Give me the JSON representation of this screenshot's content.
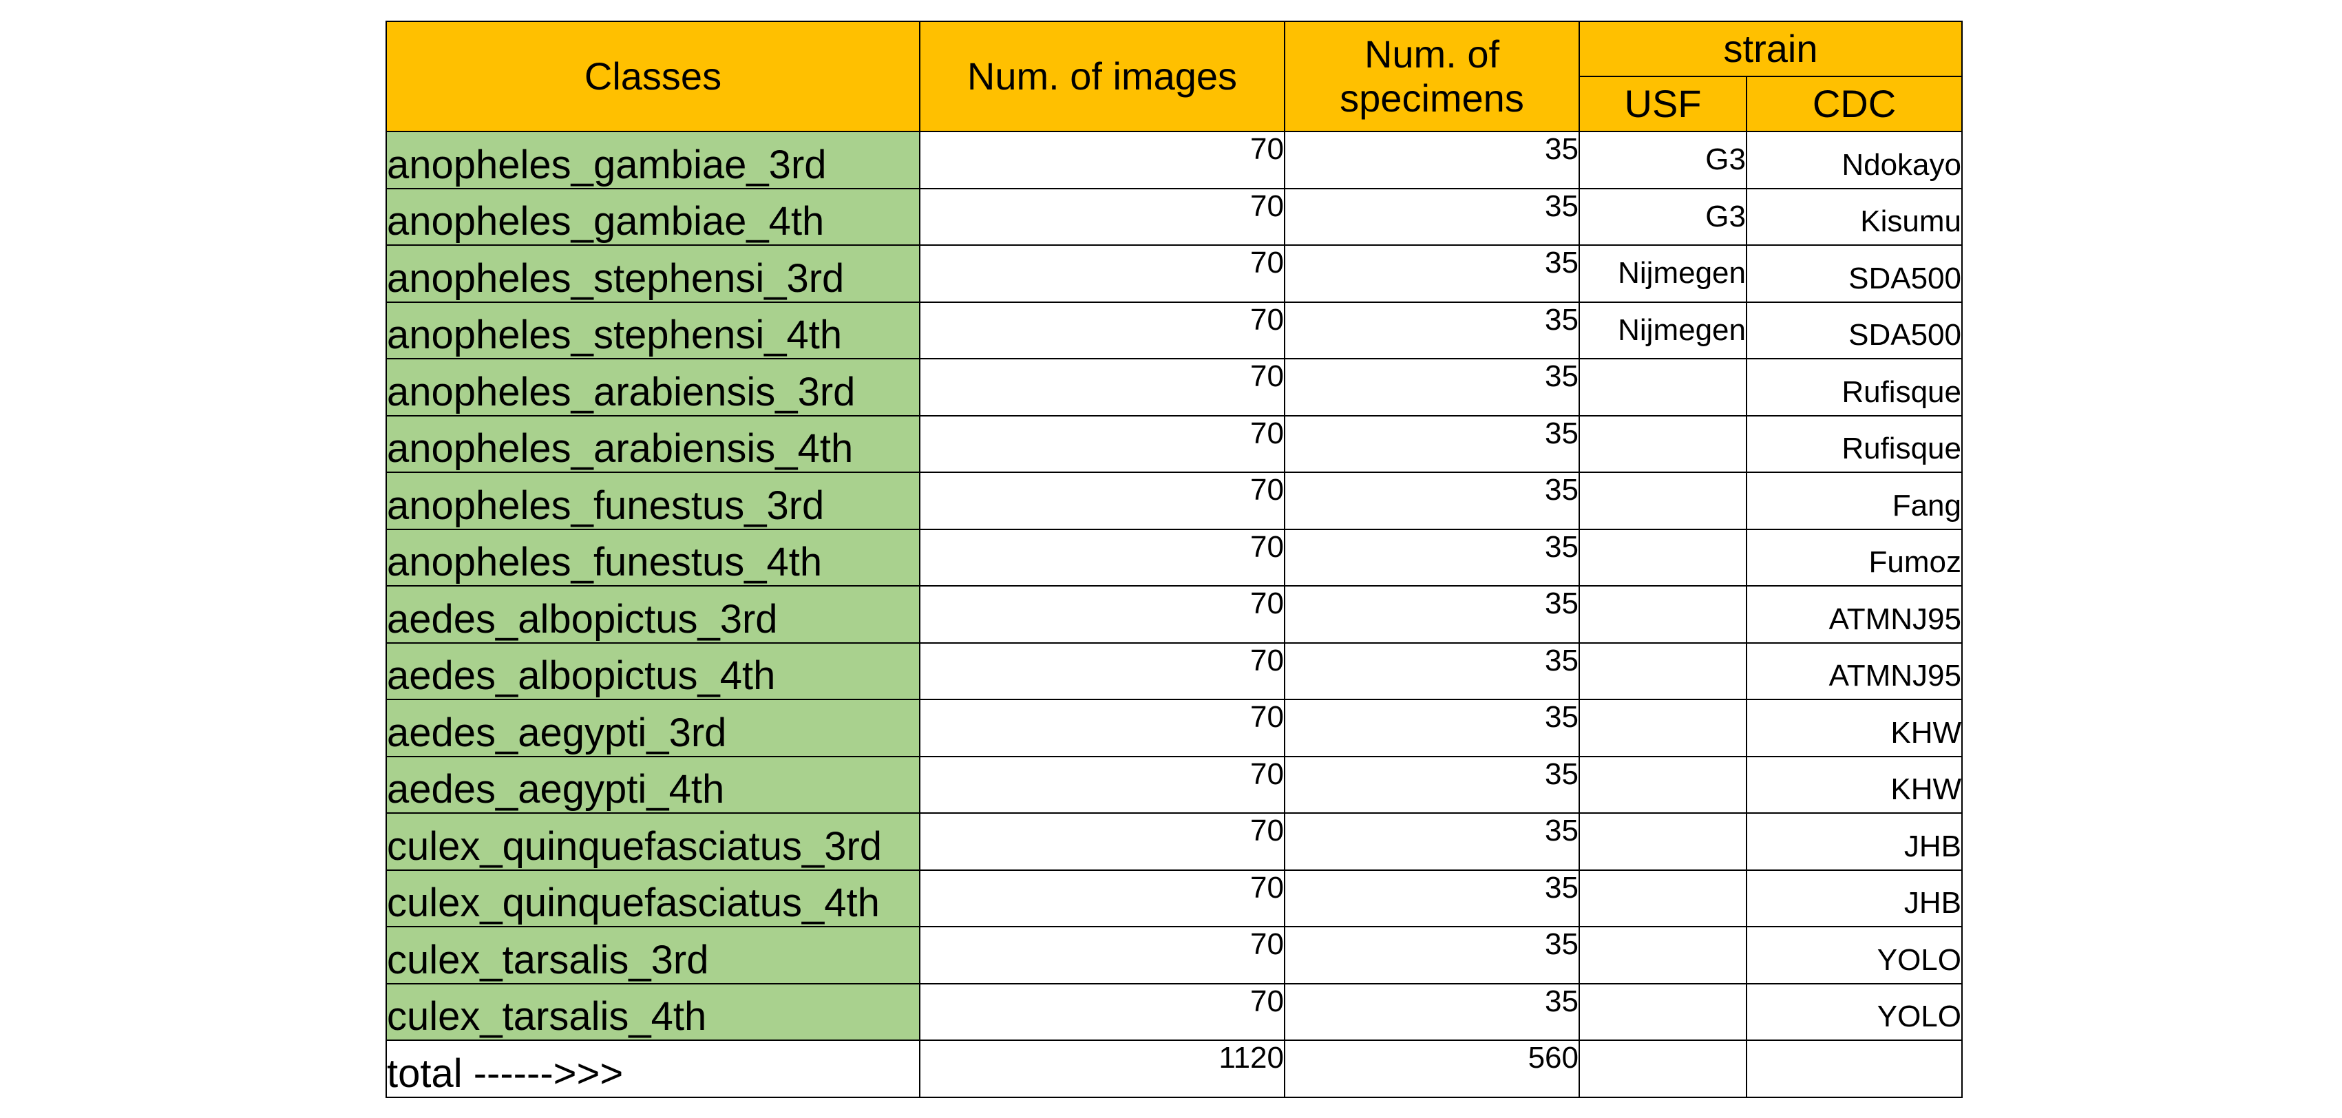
{
  "header": {
    "classes": "Classes",
    "num_images": "Num. of images",
    "num_specimens": "Num. of specimens",
    "strain": "strain",
    "usf": "USF",
    "cdc": "CDC"
  },
  "colors": {
    "header_bg": "#FFC000",
    "class_bg": "#A9D18E"
  },
  "rows": [
    {
      "class": "anopheles_gambiae_3rd",
      "images": "70",
      "specimens": "35",
      "usf": "G3",
      "cdc": "Ndokayo"
    },
    {
      "class": "anopheles_gambiae_4th",
      "images": "70",
      "specimens": "35",
      "usf": "G3",
      "cdc": "Kisumu"
    },
    {
      "class": "anopheles_stephensi_3rd",
      "images": "70",
      "specimens": "35",
      "usf": "Nijmegen",
      "cdc": "SDA500"
    },
    {
      "class": "anopheles_stephensi_4th",
      "images": "70",
      "specimens": "35",
      "usf": "Nijmegen",
      "cdc": "SDA500"
    },
    {
      "class": "anopheles_arabiensis_3rd",
      "images": "70",
      "specimens": "35",
      "usf": "",
      "cdc": "Rufisque"
    },
    {
      "class": "anopheles_arabiensis_4th",
      "images": "70",
      "specimens": "35",
      "usf": "",
      "cdc": "Rufisque"
    },
    {
      "class": "anopheles_funestus_3rd",
      "images": "70",
      "specimens": "35",
      "usf": "",
      "cdc": "Fang"
    },
    {
      "class": "anopheles_funestus_4th",
      "images": "70",
      "specimens": "35",
      "usf": "",
      "cdc": "Fumoz"
    },
    {
      "class": "aedes_albopictus_3rd",
      "images": "70",
      "specimens": "35",
      "usf": "",
      "cdc": "ATMNJ95"
    },
    {
      "class": "aedes_albopictus_4th",
      "images": "70",
      "specimens": "35",
      "usf": "",
      "cdc": "ATMNJ95"
    },
    {
      "class": "aedes_aegypti_3rd",
      "images": "70",
      "specimens": "35",
      "usf": "",
      "cdc": "KHW"
    },
    {
      "class": "aedes_aegypti_4th",
      "images": "70",
      "specimens": "35",
      "usf": "",
      "cdc": "KHW"
    },
    {
      "class": "culex_quinquefasciatus_3rd",
      "images": "70",
      "specimens": "35",
      "usf": "",
      "cdc": "JHB"
    },
    {
      "class": "culex_quinquefasciatus_4th",
      "images": "70",
      "specimens": "35",
      "usf": "",
      "cdc": "JHB"
    },
    {
      "class": "culex_tarsalis_3rd",
      "images": "70",
      "specimens": "35",
      "usf": "",
      "cdc": "YOLO"
    },
    {
      "class": "culex_tarsalis_4th",
      "images": "70",
      "specimens": "35",
      "usf": "",
      "cdc": "YOLO"
    }
  ],
  "total": {
    "label": "total ------>>>",
    "images": "1120",
    "specimens": "560"
  }
}
